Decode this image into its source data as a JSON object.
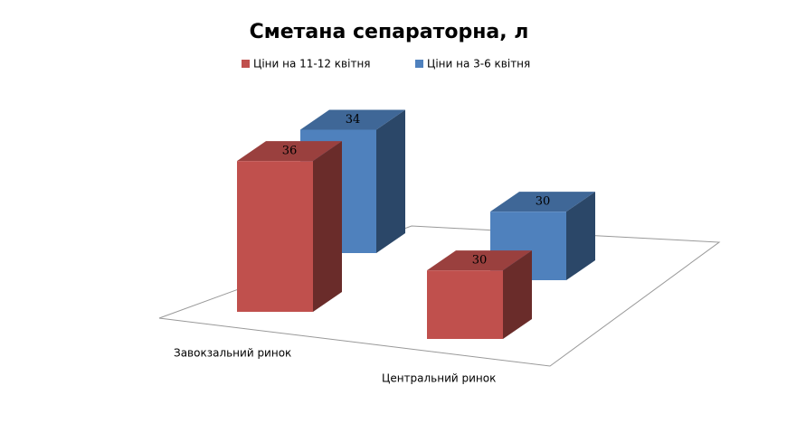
{
  "chart_data": {
    "type": "bar3d",
    "title": "Сметана сепараторна, л",
    "categories": [
      "Завокзальний ринок",
      "Центральний ринок"
    ],
    "series": [
      {
        "name": "Ціни на 11-12 квітня",
        "color": "#c0504d",
        "values": [
          36,
          30
        ]
      },
      {
        "name": "Ціни на 3-6 квітня",
        "color": "#4f81bd",
        "values": [
          34,
          30
        ]
      }
    ],
    "ylim": [
      25,
      37
    ]
  }
}
